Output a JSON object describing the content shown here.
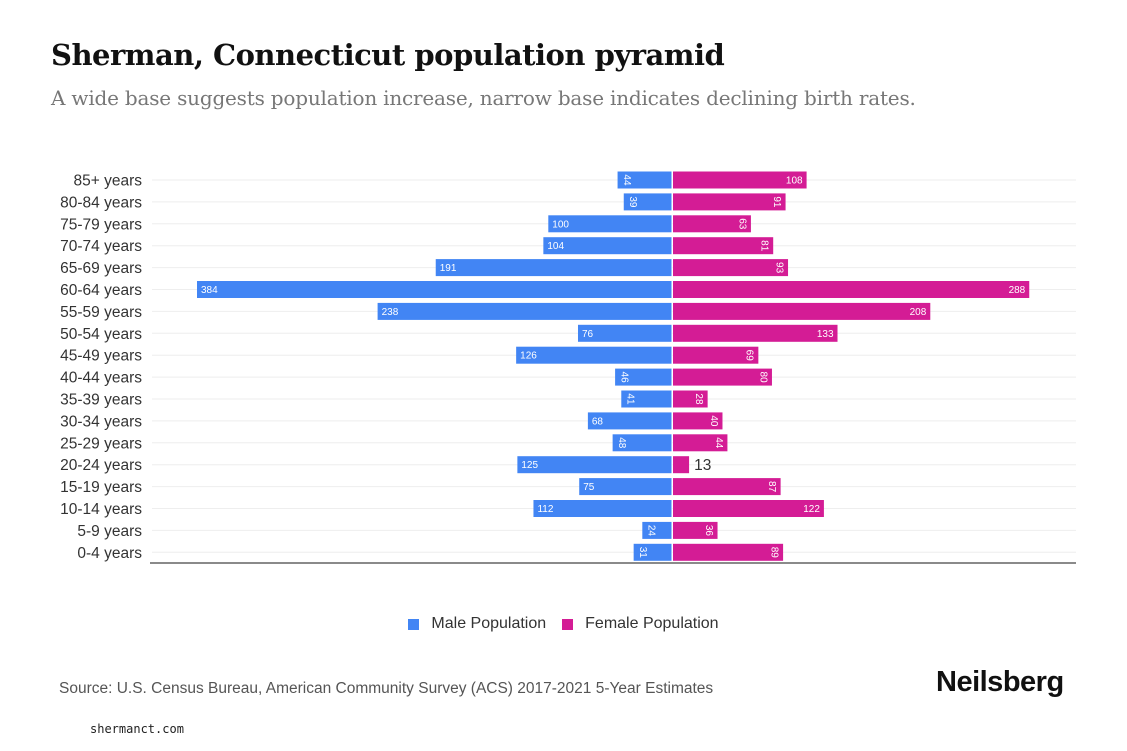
{
  "header": {
    "title": "Sherman, Connecticut population pyramid",
    "subtitle": "A wide base suggests population increase, narrow base indicates declining birth rates."
  },
  "chart_data": {
    "type": "bar",
    "orientation": "horizontal-pyramid",
    "title": "Sherman, Connecticut population pyramid",
    "subtitle": "A wide base suggests population increase, narrow base indicates declining birth rates.",
    "categories": [
      "85+ years",
      "80-84 years",
      "75-79 years",
      "70-74 years",
      "65-69 years",
      "60-64 years",
      "55-59 years",
      "50-54 years",
      "45-49 years",
      "40-44 years",
      "35-39 years",
      "30-34 years",
      "25-29 years",
      "20-24 years",
      "15-19 years",
      "10-14 years",
      "5-9 years",
      "0-4 years"
    ],
    "series": [
      {
        "name": "Male Population",
        "color": "#4285f4",
        "side": "left",
        "values": [
          44,
          39,
          100,
          104,
          191,
          384,
          238,
          76,
          126,
          46,
          41,
          68,
          48,
          125,
          75,
          112,
          24,
          31
        ]
      },
      {
        "name": "Female Population",
        "color": "#d41c95",
        "side": "right",
        "values": [
          108,
          91,
          63,
          81,
          93,
          288,
          208,
          133,
          69,
          80,
          28,
          40,
          44,
          13,
          87,
          122,
          36,
          89
        ]
      }
    ],
    "xlabel": "",
    "ylabel": "",
    "grid": true,
    "legend": "bottom-center"
  },
  "legend": {
    "male_label": "Male Population",
    "female_label": "Female Population",
    "male_color": "#4285f4",
    "female_color": "#d41c95"
  },
  "footer": {
    "source": "Source: U.S. Census Bureau, American Community Survey (ACS) 2017-2021 5-Year Estimates",
    "brand": "Neilsberg",
    "watermark": "shermanct.com"
  }
}
